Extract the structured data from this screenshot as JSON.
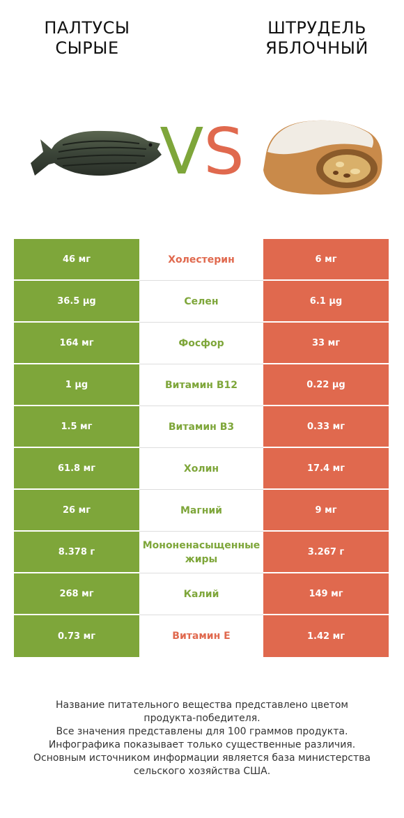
{
  "header": {
    "left_title_line1": "ПАЛТУСЫ",
    "left_title_line2": "СЫРЫЕ",
    "right_title_line1": "ШТРУДЕЛЬ",
    "right_title_line2": "ЯБЛОЧНЫЙ",
    "vs_v": "V",
    "vs_s": "S"
  },
  "colors": {
    "left_product": "#7ea63a",
    "right_product": "#e0694e"
  },
  "rows": [
    {
      "left": "46 мг",
      "name": "Холестерин",
      "right": "6 мг",
      "winner": "right"
    },
    {
      "left": "36.5 µg",
      "name": "Селен",
      "right": "6.1 µg",
      "winner": "left"
    },
    {
      "left": "164 мг",
      "name": "Фосфор",
      "right": "33 мг",
      "winner": "left"
    },
    {
      "left": "1 µg",
      "name": "Витамин B12",
      "right": "0.22 µg",
      "winner": "left"
    },
    {
      "left": "1.5 мг",
      "name": "Витамин B3",
      "right": "0.33 мг",
      "winner": "left"
    },
    {
      "left": "61.8 мг",
      "name": "Холин",
      "right": "17.4 мг",
      "winner": "left"
    },
    {
      "left": "26 мг",
      "name": "Магний",
      "right": "9 мг",
      "winner": "left"
    },
    {
      "left": "8.378 г",
      "name": "Мононенасыщенные жиры",
      "right": "3.267 г",
      "winner": "left"
    },
    {
      "left": "268 мг",
      "name": "Калий",
      "right": "149 мг",
      "winner": "left"
    },
    {
      "left": "0.73 мг",
      "name": "Витамин E",
      "right": "1.42 мг",
      "winner": "right"
    }
  ],
  "footer": {
    "line1": "Название питательного вещества представлено цветом",
    "line2": "продукта-победителя.",
    "line3": "Все значения представлены для 100 граммов продукта.",
    "line4": "Инфографика показывает только существенные различия.",
    "line5": "Основным источником информации является база министерства",
    "line6": "сельского хозяйства США."
  }
}
